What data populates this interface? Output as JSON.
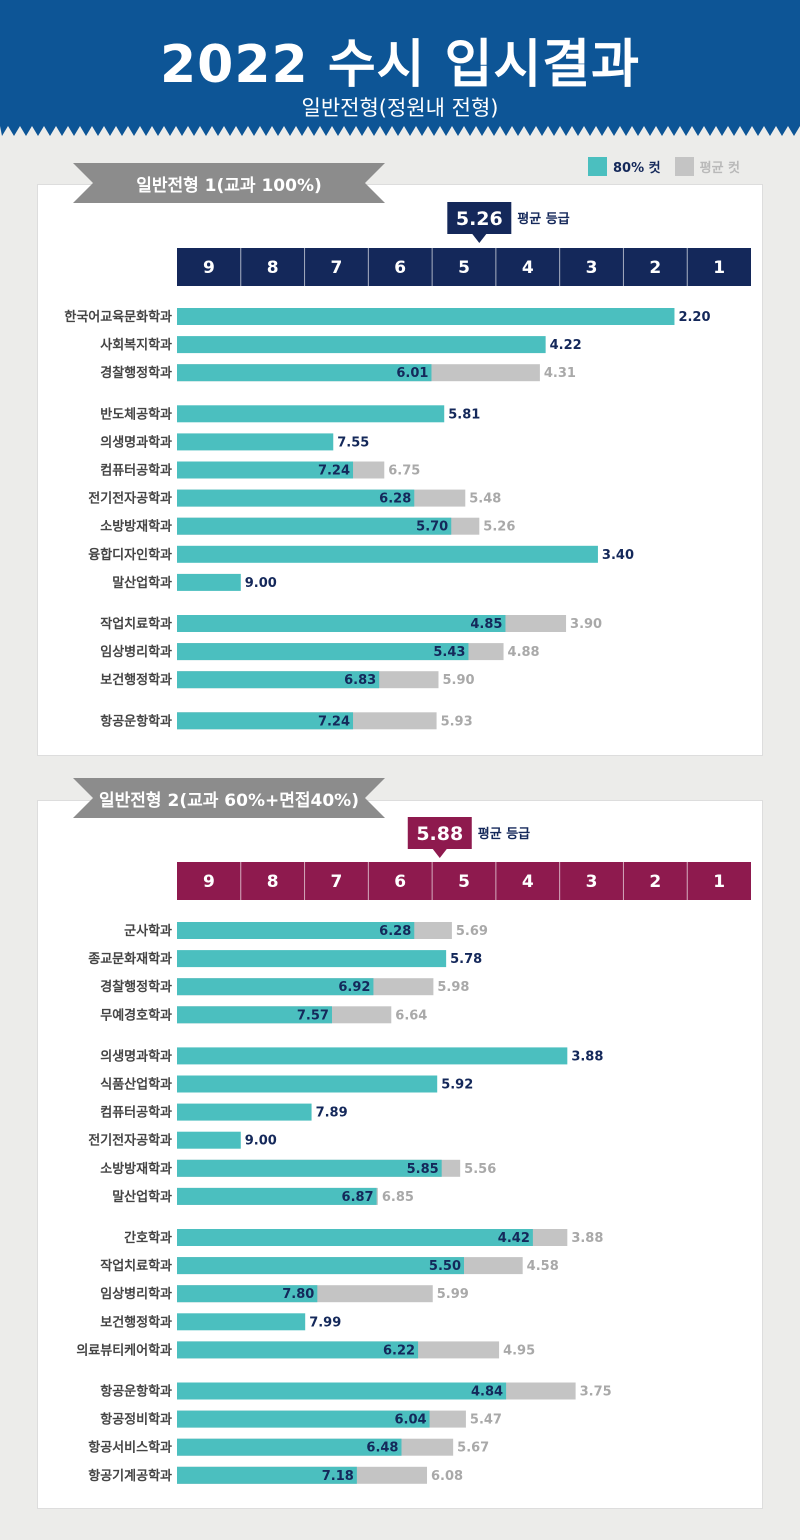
{
  "header": {
    "title": "2022 수시 입시결과",
    "subtitle": "일반전형(정원내 전형)",
    "bg_color": "#0d5596"
  },
  "legend": {
    "cut80_label": "80% 컷",
    "avg_label": "평균 컷",
    "cut80_color": "#4bbfbf",
    "avg_color": "#c4c4c4"
  },
  "chart_data": [
    {
      "type": "bar",
      "title": "일반전형 1(교과 100%)",
      "axis_ticks": [
        "9",
        "8",
        "7",
        "6",
        "5",
        "4",
        "3",
        "2",
        "1"
      ],
      "axis_color": "#14285a",
      "average_grade": 5.26,
      "average_label": "평균 등급",
      "groups": [
        [
          {
            "category": "한국어교육문화학과",
            "cut80": 2.2,
            "avg": null
          },
          {
            "category": "사회복지학과",
            "cut80": 4.22,
            "avg": null
          },
          {
            "category": "경찰행정학과",
            "cut80": 6.01,
            "avg": 4.31
          }
        ],
        [
          {
            "category": "반도체공학과",
            "cut80": 5.81,
            "avg": null
          },
          {
            "category": "의생명과학과",
            "cut80": 7.55,
            "avg": null
          },
          {
            "category": "컴퓨터공학과",
            "cut80": 7.24,
            "avg": 6.75
          },
          {
            "category": "전기전자공학과",
            "cut80": 6.28,
            "avg": 5.48
          },
          {
            "category": "소방방재학과",
            "cut80": 5.7,
            "avg": 5.26
          },
          {
            "category": "융합디자인학과",
            "cut80": 3.4,
            "avg": null
          },
          {
            "category": "말산업학과",
            "cut80": 9.0,
            "avg": null
          }
        ],
        [
          {
            "category": "작업치료학과",
            "cut80": 4.85,
            "avg": 3.9
          },
          {
            "category": "임상병리학과",
            "cut80": 5.43,
            "avg": 4.88
          },
          {
            "category": "보건행정학과",
            "cut80": 6.83,
            "avg": 5.9
          }
        ],
        [
          {
            "category": "항공운항학과",
            "cut80": 7.24,
            "avg": 5.93
          }
        ]
      ]
    },
    {
      "type": "bar",
      "title": "일반전형 2(교과 60%+면접40%)",
      "axis_ticks": [
        "9",
        "8",
        "7",
        "6",
        "5",
        "4",
        "3",
        "2",
        "1"
      ],
      "axis_color": "#8e1a4e",
      "average_grade": 5.88,
      "average_label": "평균 등급",
      "groups": [
        [
          {
            "category": "군사학과",
            "cut80": 6.28,
            "avg": 5.69
          },
          {
            "category": "종교문화재학과",
            "cut80": 5.78,
            "avg": null
          },
          {
            "category": "경찰행정학과",
            "cut80": 6.92,
            "avg": 5.98
          },
          {
            "category": "무예경호학과",
            "cut80": 7.57,
            "avg": 6.64
          }
        ],
        [
          {
            "category": "의생명과학과",
            "cut80": 3.88,
            "avg": null
          },
          {
            "category": "식품산업학과",
            "cut80": 5.92,
            "avg": null
          },
          {
            "category": "컴퓨터공학과",
            "cut80": 7.89,
            "avg": null
          },
          {
            "category": "전기전자공학과",
            "cut80": 9.0,
            "avg": null
          },
          {
            "category": "소방방재학과",
            "cut80": 5.85,
            "avg": 5.56
          },
          {
            "category": "말산업학과",
            "cut80": 6.87,
            "avg": 6.85
          }
        ],
        [
          {
            "category": "간호학과",
            "cut80": 4.42,
            "avg": 3.88
          },
          {
            "category": "작업치료학과",
            "cut80": 5.5,
            "avg": 4.58
          },
          {
            "category": "임상병리학과",
            "cut80": 7.8,
            "avg": 5.99
          },
          {
            "category": "보건행정학과",
            "cut80": 7.99,
            "avg": null
          },
          {
            "category": "의료뷰티케어학과",
            "cut80": 6.22,
            "avg": 4.95
          }
        ],
        [
          {
            "category": "항공운항학과",
            "cut80": 4.84,
            "avg": 3.75
          },
          {
            "category": "항공정비학과",
            "cut80": 6.04,
            "avg": 5.47
          },
          {
            "category": "항공서비스학과",
            "cut80": 6.48,
            "avg": 5.67
          },
          {
            "category": "항공기계공학과",
            "cut80": 7.18,
            "avg": 6.08
          }
        ]
      ]
    }
  ]
}
